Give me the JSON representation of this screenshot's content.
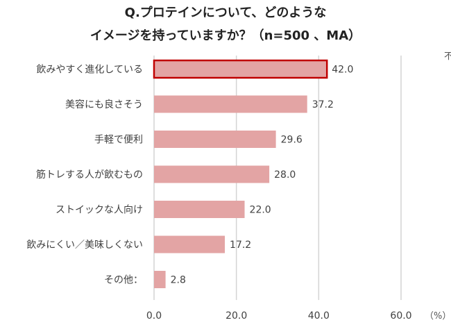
{
  "title": {
    "line1": "Q.プロテインについて、どのような",
    "line2": "イメージを持っていますか？（n=500 、MA）"
  },
  "cutoff_text": "不",
  "chart_data": {
    "type": "bar",
    "orientation": "horizontal",
    "categories": [
      "飲みやすく進化している",
      "美容にも良さそう",
      "手軽で便利",
      "筋トレする人が飲むもの",
      "ストイックな人向け",
      "飲みにくい／美味しくない",
      "その他："
    ],
    "values": [
      42.0,
      37.2,
      29.6,
      28.0,
      22.0,
      17.2,
      2.8
    ],
    "value_labels": [
      "42.0",
      "37.2",
      "29.6",
      "28.0",
      "22.0",
      "17.2",
      "2.8"
    ],
    "highlight_index": 0,
    "xlim": [
      0,
      60
    ],
    "xticks": [
      "0.0",
      "20.0",
      "40.0",
      "60.0"
    ],
    "x_unit": "（%）",
    "grid": true,
    "colors": {
      "bar": "#e3a4a4",
      "highlight_fill": "#e3a4a4",
      "highlight_border": "#c00000",
      "grid": "#d4d4d4"
    }
  }
}
